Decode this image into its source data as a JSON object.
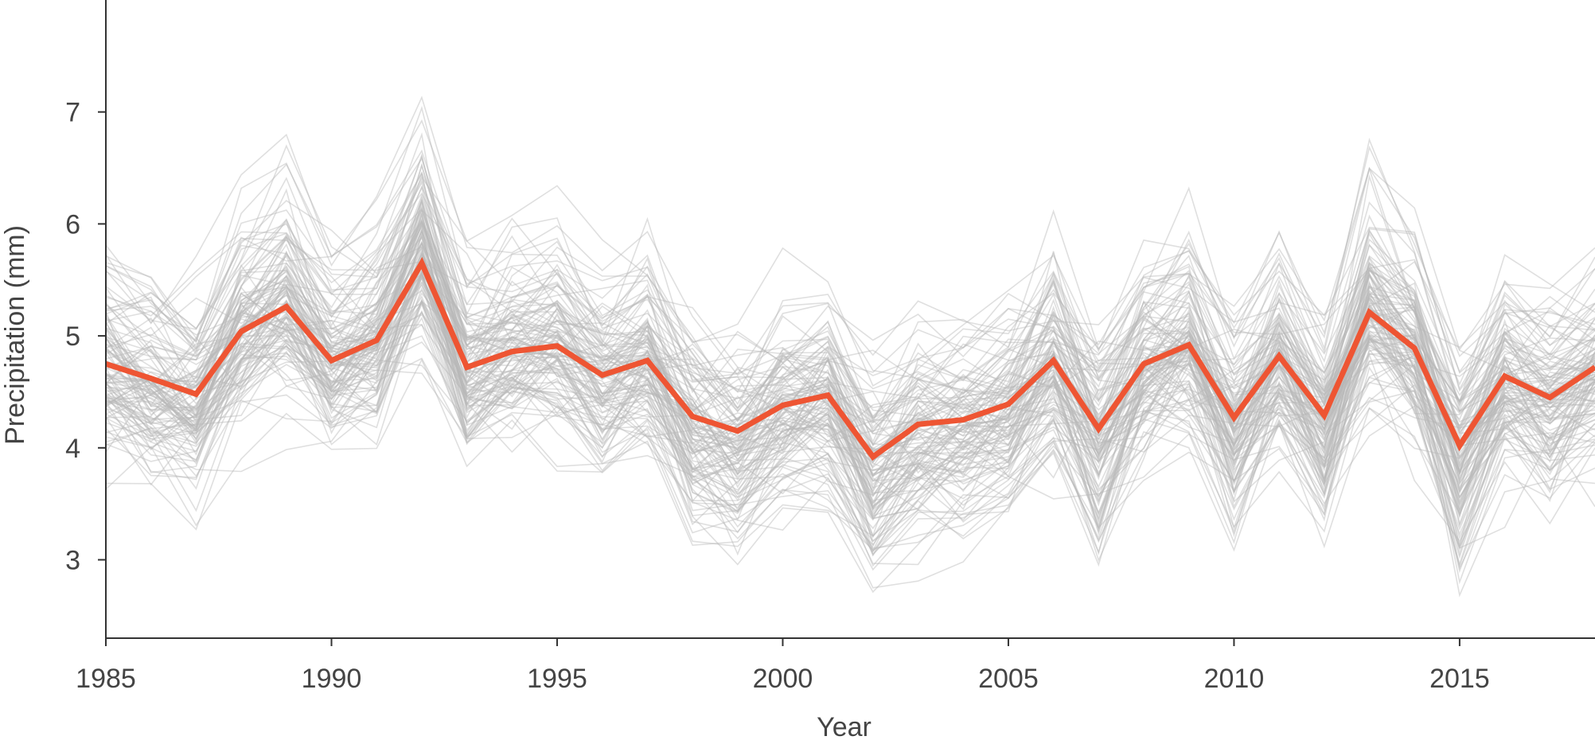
{
  "chart_data": {
    "type": "line",
    "title": "",
    "xlabel": "Year",
    "ylabel": "Precipitation (mm)",
    "xlim": [
      1985,
      2018
    ],
    "ylim": [
      2.3,
      8.0
    ],
    "x_ticks": [
      1985,
      1990,
      1995,
      2000,
      2005,
      2010,
      2015
    ],
    "y_ticks": [
      3,
      4,
      5,
      6,
      7
    ],
    "grid": false,
    "legend": "none",
    "highlight_color": "#EE5533",
    "background_line_color": "#b8b8b8",
    "x": [
      1985,
      1986,
      1987,
      1988,
      1989,
      1990,
      1991,
      1992,
      1993,
      1994,
      1995,
      1996,
      1997,
      1998,
      1999,
      2000,
      2001,
      2002,
      2003,
      2004,
      2005,
      2006,
      2007,
      2008,
      2009,
      2010,
      2011,
      2012,
      2013,
      2014,
      2015,
      2016,
      2017,
      2018
    ],
    "highlight_series": {
      "values": [
        4.75,
        4.62,
        4.48,
        5.04,
        5.26,
        4.78,
        4.96,
        5.65,
        4.72,
        4.86,
        4.91,
        4.65,
        4.78,
        4.28,
        4.15,
        4.38,
        4.47,
        3.92,
        4.21,
        4.25,
        4.39,
        4.78,
        4.17,
        4.75,
        4.92,
        4.27,
        4.82,
        4.29,
        5.21,
        4.89,
        4.02,
        4.64,
        4.45,
        4.72
      ]
    },
    "background_series_count": 120
  }
}
